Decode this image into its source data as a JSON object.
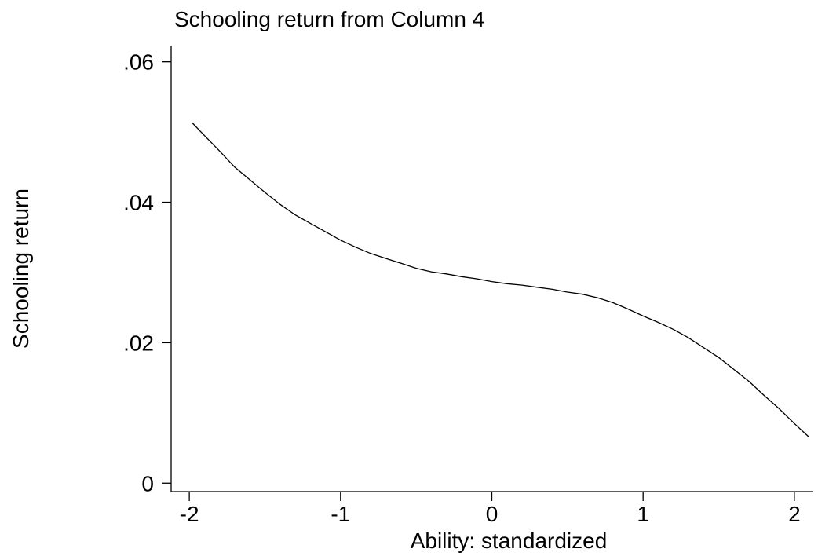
{
  "chart_data": {
    "type": "line",
    "title": "Schooling return from Column 4",
    "xlabel": "Ability: standardized",
    "ylabel": "Schooling return",
    "xlim": [
      -2.12,
      2.12
    ],
    "ylim": [
      -0.0012,
      0.0622
    ],
    "xticks": [
      -2,
      -1,
      0,
      1,
      2
    ],
    "xtick_labels": [
      "-2",
      "-1",
      "0",
      "1",
      "2"
    ],
    "yticks": [
      0,
      0.02,
      0.04,
      0.06
    ],
    "ytick_labels": [
      "0",
      ".02",
      ".04",
      ".06"
    ],
    "grid": false,
    "series": [
      {
        "x": [
          -1.98,
          -1.9,
          -1.8,
          -1.7,
          -1.6,
          -1.5,
          -1.4,
          -1.3,
          -1.2,
          -1.1,
          -1.0,
          -0.9,
          -0.8,
          -0.7,
          -0.6,
          -0.5,
          -0.4,
          -0.3,
          -0.2,
          -0.1,
          0.0,
          0.1,
          0.2,
          0.3,
          0.4,
          0.5,
          0.6,
          0.7,
          0.8,
          0.9,
          1.0,
          1.1,
          1.2,
          1.3,
          1.4,
          1.5,
          1.6,
          1.7,
          1.8,
          1.9,
          2.0,
          2.1
        ],
        "y": [
          0.0513,
          0.0495,
          0.0473,
          0.045,
          0.0432,
          0.0414,
          0.0397,
          0.0382,
          0.037,
          0.0358,
          0.0346,
          0.0336,
          0.0327,
          0.032,
          0.0313,
          0.0306,
          0.0301,
          0.0298,
          0.0294,
          0.0291,
          0.0287,
          0.0284,
          0.0282,
          0.0279,
          0.0276,
          0.0272,
          0.0269,
          0.0264,
          0.0257,
          0.0248,
          0.0238,
          0.0229,
          0.0219,
          0.0207,
          0.0193,
          0.0179,
          0.0162,
          0.0145,
          0.0125,
          0.0106,
          0.0085,
          0.0065
        ]
      }
    ]
  }
}
